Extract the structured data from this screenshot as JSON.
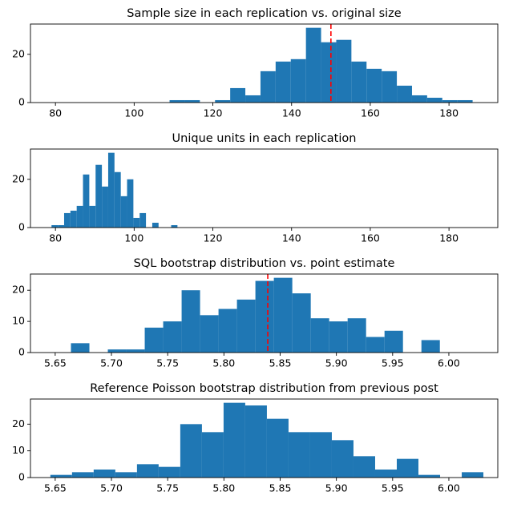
{
  "chart_data": [
    {
      "type": "histogram",
      "title": "Sample size in each replication vs. original size",
      "bins": [
        109,
        112.85,
        116.7,
        120.55,
        124.4,
        128.25,
        132.1,
        135.95,
        139.8,
        143.65,
        147.5,
        151.35,
        155.2,
        159.05,
        162.9,
        166.75,
        170.6,
        174.45,
        178.3,
        182.15,
        186
      ],
      "counts": [
        1,
        1,
        0,
        1,
        6,
        3,
        13,
        17,
        18,
        31,
        25,
        26,
        17,
        14,
        13,
        7,
        3,
        2,
        1,
        1
      ],
      "color": "#1f77b4",
      "xlim": [
        73.65,
        192.4
      ],
      "xticks": [
        80,
        100,
        120,
        140,
        160,
        180
      ],
      "ylim": [
        0,
        32.55
      ],
      "yticks": [
        0,
        20
      ],
      "reference_line": {
        "value": 150,
        "color": "#ff0000"
      }
    },
    {
      "type": "histogram",
      "title": "Unique units in each replication",
      "bins": [
        79,
        80.6,
        82.2,
        83.8,
        85.4,
        87,
        88.6,
        90.2,
        91.8,
        93.4,
        95,
        96.6,
        98.2,
        99.8,
        101.4,
        103,
        104.6,
        106.2,
        107.8,
        109.4,
        111
      ],
      "counts": [
        1,
        1,
        6,
        7,
        9,
        22,
        9,
        26,
        17,
        31,
        23,
        13,
        20,
        4,
        6,
        0,
        2,
        0,
        0,
        1
      ],
      "color": "#1f77b4",
      "xlim": [
        73.65,
        192.4
      ],
      "xticks": [
        80,
        100,
        120,
        140,
        160,
        180
      ],
      "ylim": [
        0,
        32.55
      ],
      "yticks": [
        0,
        20
      ]
    },
    {
      "type": "histogram",
      "title": "SQL bootstrap distribution vs. point estimate",
      "bins": [
        5.664,
        5.6804,
        5.6968,
        5.7132,
        5.7296,
        5.746,
        5.7624,
        5.7788,
        5.7952,
        5.8116,
        5.828,
        5.8444,
        5.8608,
        5.8772,
        5.8936,
        5.91,
        5.9264,
        5.9428,
        5.9592,
        5.9756,
        5.992
      ],
      "counts": [
        3,
        0,
        1,
        1,
        8,
        10,
        20,
        12,
        14,
        17,
        23,
        24,
        19,
        11,
        10,
        11,
        5,
        7,
        0,
        4
      ],
      "color": "#1f77b4",
      "xlim": [
        5.628,
        6.0435
      ],
      "xticks": [
        5.65,
        {
          "value": 5.7,
          "label": "5.70"
        },
        5.75,
        {
          "value": 5.8,
          "label": "5.80"
        },
        5.85,
        {
          "value": 5.9,
          "label": "5.90"
        },
        5.95,
        {
          "value": 6,
          "label": "6.00"
        }
      ],
      "ylim": [
        0,
        25.2
      ],
      "yticks": [
        0,
        10,
        20
      ],
      "reference_line": {
        "value": 5.839,
        "color": "#ff0000"
      }
    },
    {
      "type": "histogram",
      "title": "Reference Poisson bootstrap distribution from previous post",
      "bins": [
        5.6457,
        5.66495,
        5.6842,
        5.70345,
        5.7227,
        5.74195,
        5.7612,
        5.78045,
        5.7997,
        5.81895,
        5.8382,
        5.85745,
        5.8767,
        5.89595,
        5.9152,
        5.93445,
        5.9537,
        5.97295,
        5.9922,
        6.01145,
        6.0307
      ],
      "counts": [
        1,
        2,
        3,
        2,
        5,
        4,
        20,
        17,
        28,
        27,
        22,
        17,
        17,
        14,
        8,
        3,
        7,
        1,
        0,
        2
      ],
      "color": "#1f77b4",
      "xlim": [
        5.628,
        6.0435
      ],
      "xticks": [
        5.65,
        {
          "value": 5.7,
          "label": "5.70"
        },
        5.75,
        {
          "value": 5.8,
          "label": "5.80"
        },
        5.85,
        {
          "value": 5.9,
          "label": "5.90"
        },
        5.95,
        {
          "value": 6,
          "label": "6.00"
        }
      ],
      "ylim": [
        0,
        29.4
      ],
      "yticks": [
        0,
        10,
        20
      ]
    }
  ]
}
